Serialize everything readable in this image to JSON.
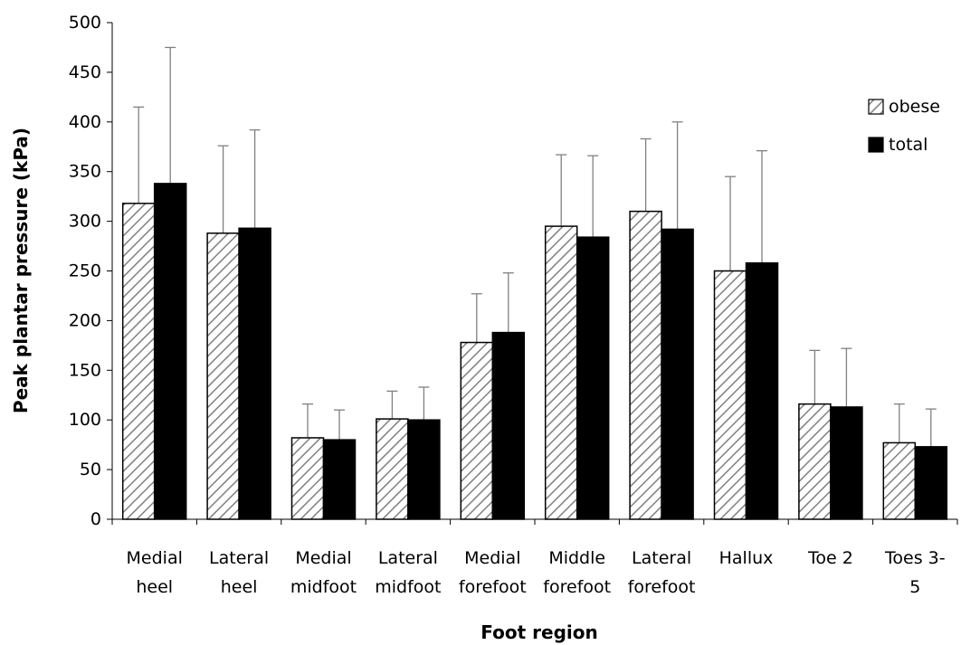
{
  "chart_data": {
    "type": "bar",
    "title": "",
    "xlabel": "Foot region",
    "ylabel": "Peak plantar pressure (kPa)",
    "ylim": [
      0,
      500
    ],
    "yticks": [
      0,
      50,
      100,
      150,
      200,
      250,
      300,
      350,
      400,
      450,
      500
    ],
    "categories": [
      [
        "Medial",
        "heel"
      ],
      [
        "Lateral",
        "heel"
      ],
      [
        "Medial",
        "midfoot"
      ],
      [
        "Lateral",
        "midfoot"
      ],
      [
        "Medial",
        "forefoot"
      ],
      [
        "Middle",
        "forefoot"
      ],
      [
        "Lateral",
        "forefoot"
      ],
      [
        "Hallux"
      ],
      [
        "Toe 2"
      ],
      [
        "Toes 3-",
        "5"
      ]
    ],
    "series": [
      {
        "name": "obese",
        "pattern": "diagonal-hatch",
        "color": "#ffffff",
        "stroke": "#000000",
        "values": [
          318,
          288,
          82,
          101,
          178,
          295,
          310,
          250,
          116,
          77
        ],
        "error_upper": [
          415,
          376,
          116,
          129,
          227,
          367,
          383,
          345,
          170,
          116
        ]
      },
      {
        "name": "total",
        "pattern": "solid",
        "color": "#000000",
        "stroke": "#000000",
        "values": [
          338,
          293,
          80,
          100,
          188,
          284,
          292,
          258,
          113,
          73
        ],
        "error_upper": [
          475,
          392,
          110,
          133,
          248,
          366,
          400,
          371,
          172,
          111
        ]
      }
    ],
    "legend": {
      "position": "right"
    },
    "grid": false,
    "colors": {
      "axis": "#000000",
      "error_bar": "#808080",
      "hatch": "#808080"
    }
  }
}
